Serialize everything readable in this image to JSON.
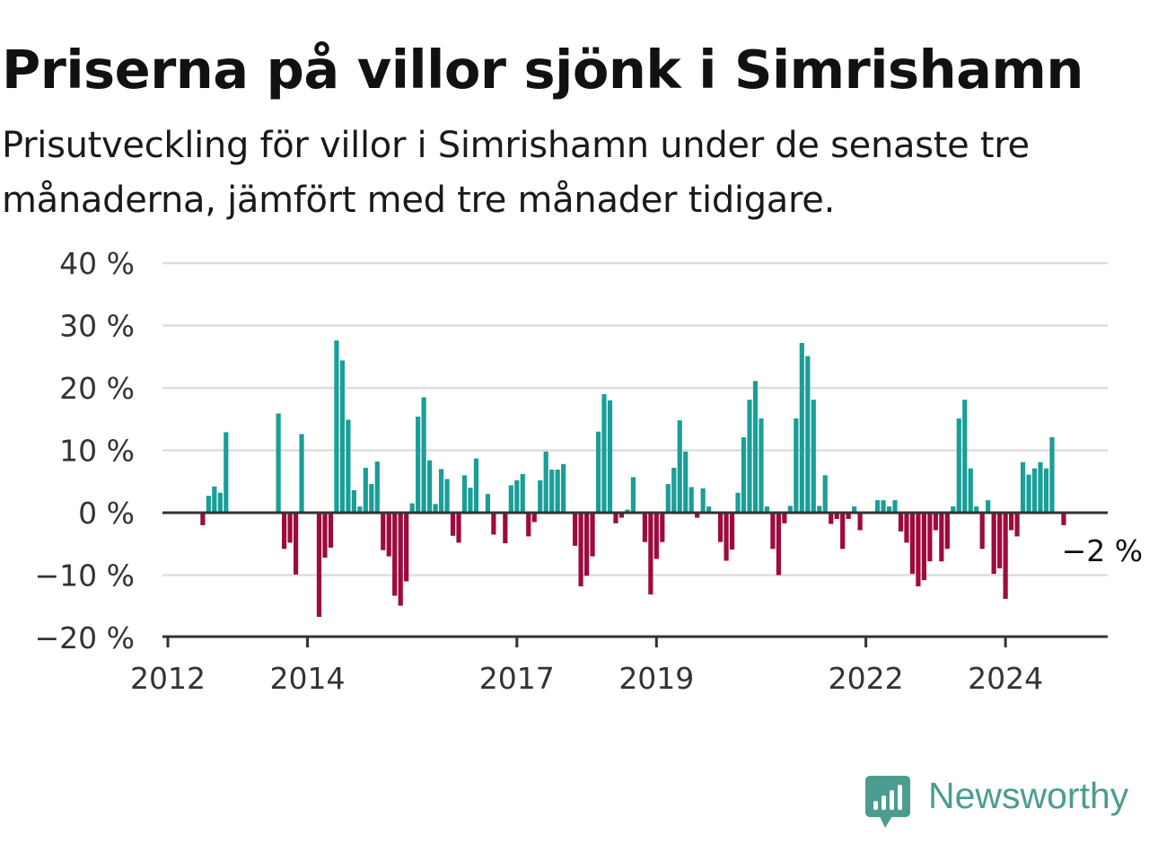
{
  "header": {
    "title": "Priserna på villor sjönk i Simrishamn",
    "subtitle": "Prisutveckling för villor i Simrishamn under de senaste tre månaderna, jämfört med tre månader tidigare."
  },
  "brand": {
    "name": "Newsworthy",
    "icon": "newsworthy-chart-bubble-icon",
    "color": "#4c9c90"
  },
  "colors": {
    "positive": "#1a9e98",
    "negative": "#9e0a3e",
    "grid": "#dddddd",
    "zero_line": "#333333"
  },
  "chart_data": {
    "type": "bar",
    "x_unit": "month",
    "x_start": "2012-01",
    "ylim": [
      -20,
      40
    ],
    "y_ticks": [
      -20,
      -10,
      0,
      10,
      20,
      30,
      40
    ],
    "y_tick_labels": [
      "−20 %",
      "−10 %",
      "0 %",
      "10 %",
      "20 %",
      "30 %",
      "40 %"
    ],
    "x_ticks": [
      {
        "value": "2012-01",
        "label": "2012"
      },
      {
        "value": "2014-01",
        "label": "2014"
      },
      {
        "value": "2017-01",
        "label": "2017"
      },
      {
        "value": "2019-01",
        "label": "2019"
      },
      {
        "value": "2022-01",
        "label": "2022"
      },
      {
        "value": "2024-01",
        "label": "2024"
      }
    ],
    "grid": true,
    "last_value_label": "−2 %",
    "series": [
      {
        "values": [
          null,
          null,
          null,
          null,
          null,
          null,
          -2,
          2.7,
          4.2,
          3.2,
          12.9,
          null,
          null,
          null,
          null,
          null,
          null,
          null,
          null,
          15.9,
          -5.8,
          -4.8,
          -9.9,
          12.6,
          null,
          null,
          -16.7,
          -7.2,
          -5.6,
          27.6,
          24.4,
          14.9,
          3.6,
          1,
          7.2,
          4.6,
          8.2,
          -6,
          -7,
          -13.3,
          -14.9,
          -11,
          1.5,
          15.4,
          18.5,
          8.4,
          1.4,
          7,
          5.4,
          -3.7,
          -4.8,
          6,
          4,
          8.7,
          null,
          3,
          -3.5,
          null,
          -4.9,
          4.4,
          5.2,
          6.2,
          -3.8,
          -1.5,
          5.2,
          9.8,
          6.9,
          6.9,
          7.8,
          null,
          -5.3,
          -11.8,
          -10.1,
          -7,
          13,
          19,
          18,
          -1.7,
          -0.8,
          0.5,
          5.7,
          null,
          -4.7,
          -13.1,
          -7.4,
          -4.7,
          4.6,
          7.2,
          14.8,
          9.8,
          4.1,
          -0.8,
          3.9,
          1,
          null,
          -4.7,
          -7.7,
          -5.9,
          3.2,
          12.1,
          18.1,
          21.1,
          15.1,
          1,
          -5.8,
          -10,
          -1.7,
          1.1,
          15.1,
          27.2,
          25.1,
          18.1,
          1.1,
          6,
          -1.8,
          -1,
          -5.8,
          -1,
          1,
          -2.8,
          null,
          null,
          2,
          2,
          1,
          2,
          -3,
          -4.8,
          -9.8,
          -11.8,
          -10.8,
          -7.8,
          -2.8,
          -7.8,
          -5.8,
          1,
          15.1,
          18.1,
          7.1,
          1,
          -5.8,
          2,
          -9.8,
          -8.9,
          -13.8,
          -2.8,
          -3.8,
          8.1,
          6.1,
          7.1,
          8.1,
          7.1,
          12.1,
          null,
          -2,
          null
        ]
      }
    ]
  }
}
